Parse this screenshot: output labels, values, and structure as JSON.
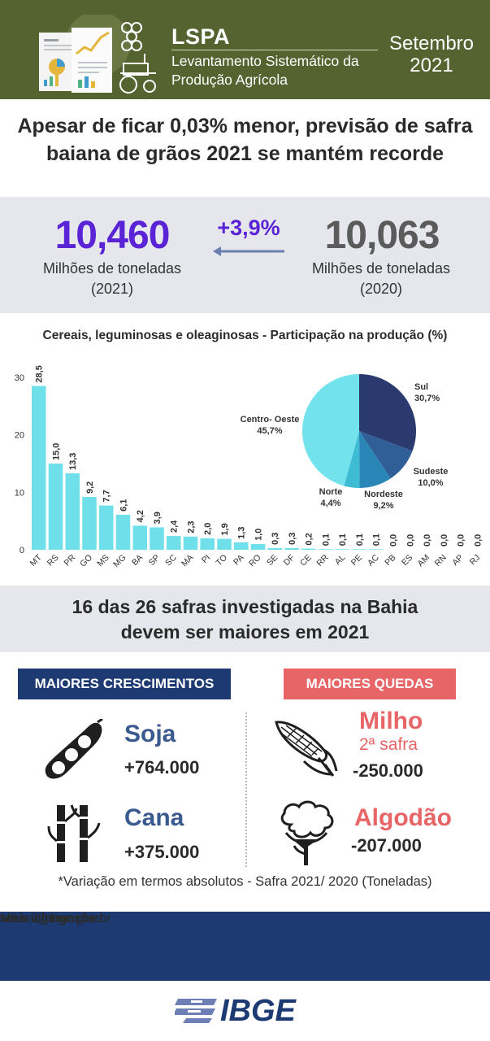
{
  "header": {
    "title": "LSPA",
    "subtitle_line1": "Levantamento Sistemático da",
    "subtitle_line2": "Produção Agrícola",
    "month": "Setembro",
    "year": "2021"
  },
  "headline": {
    "line1": "Apesar de ficar 0,03% menor, previsão de safra",
    "line2": "baiana de grãos 2021 se mantém recorde"
  },
  "comparison": {
    "value_2021": "10,460",
    "unit_2021": "Milhões de toneladas",
    "year_2021": "(2021)",
    "change": "+3,9%",
    "value_2020": "10,063",
    "unit_2020": "Milhões de toneladas",
    "year_2020": "(2020)"
  },
  "chart_data": [
    {
      "type": "bar",
      "title": "Cereais, leguminosas e oleaginosas - Participação na produção (%)",
      "xlabel": "",
      "ylabel": "",
      "ylim": [
        0,
        30
      ],
      "yticks": [
        "0",
        "10",
        "20",
        "30"
      ],
      "categories": [
        "MT",
        "RS",
        "PR",
        "GO",
        "MS",
        "MG",
        "BA",
        "SP",
        "SC",
        "MA",
        "PI",
        "TO",
        "PA",
        "RO",
        "SE",
        "DF",
        "CE",
        "RR",
        "AL",
        "PE",
        "AC",
        "PB",
        "ES",
        "AM",
        "RN",
        "AP",
        "RJ"
      ],
      "values": [
        28.5,
        15.0,
        13.3,
        9.2,
        7.7,
        6.1,
        4.2,
        3.9,
        2.4,
        2.3,
        2.0,
        1.9,
        1.3,
        1.0,
        0.3,
        0.3,
        0.2,
        0.1,
        0.1,
        0.1,
        0.1,
        0.0,
        0.0,
        0.0,
        0.0,
        0.0,
        0.0
      ],
      "value_labels": [
        "28,5",
        "15,0",
        "13,3",
        "9,2",
        "7,7",
        "6,1",
        "4,2",
        "3,9",
        "2,4",
        "2,3",
        "2,0",
        "1,9",
        "1,3",
        "1,0",
        "0,3",
        "0,3",
        "0,2",
        "0,1",
        "0,1",
        "0,1",
        "0,1",
        "0,0",
        "0,0",
        "0,0",
        "0,0",
        "0,0",
        "0,0"
      ],
      "bar_color": "#6fe0ea",
      "grid": false
    },
    {
      "type": "pie",
      "slices": [
        {
          "name": "Sul",
          "label": "30,7%",
          "value": 30.7,
          "color": "#2b3a6e"
        },
        {
          "name": "Sudeste",
          "label": "10,0%",
          "value": 10.0,
          "color": "#2f5f96"
        },
        {
          "name": "Nordeste",
          "label": "9,2%",
          "value": 9.2,
          "color": "#2b86b8"
        },
        {
          "name": "Norte",
          "label": "4,4%",
          "value": 4.4,
          "color": "#3dbcd4"
        },
        {
          "name": "Centro- Oeste",
          "label": "45,7%",
          "value": 45.7,
          "color": "#72e2ec"
        }
      ]
    }
  ],
  "headline2": {
    "line1": "16 das 26 safras investigadas na Bahia",
    "line2": "devem ser maiores em 2021"
  },
  "growth": {
    "label": "MAIORES CRESCIMENTOS",
    "items": [
      {
        "name": "Soja",
        "value": "+764.000",
        "icon": "soybean-pod-icon"
      },
      {
        "name": "Cana",
        "value": "+375.000",
        "icon": "sugarcane-icon"
      }
    ]
  },
  "decline": {
    "label": "MAIORES QUEDAS",
    "items": [
      {
        "name": "Milho",
        "sub": "2ª safra",
        "value": "-250.000",
        "icon": "corn-icon"
      },
      {
        "name": "Algodão",
        "value": "-207.000",
        "icon": "cotton-icon"
      }
    ]
  },
  "note": "*Variação em termos absolutos - Safra 2021/ 2020 (Toneladas)",
  "footer": {
    "more": "Mais informações:",
    "email": "sdi.ba@ibge.gov.br",
    "site": "www.ibge.gov.br"
  },
  "logo": {
    "text": "IBGE"
  },
  "colors": {
    "header_bg": "#556330",
    "accent_purple": "#5b23d6",
    "navy": "#1d3a72",
    "coral": "#e86567",
    "bar": "#6fe0ea"
  }
}
